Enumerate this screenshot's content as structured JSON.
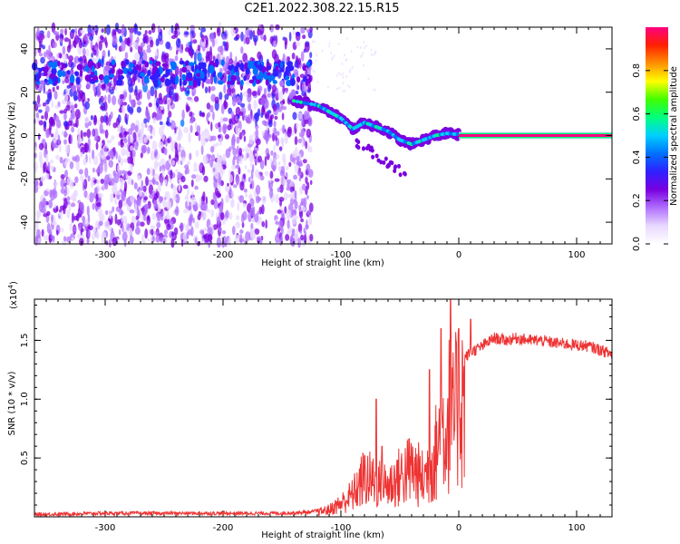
{
  "figure_title": "C2E1.2022.308.22.15.R15",
  "chart_data": [
    {
      "type": "heatmap",
      "xlabel": "Height of straight line (km)",
      "ylabel": "Frequency (Hz)",
      "xlim": [
        -360,
        130
      ],
      "ylim": [
        -50,
        50
      ],
      "x_ticks": [
        -300,
        -200,
        -100,
        0,
        100
      ],
      "y_ticks": [
        -40,
        -20,
        0,
        20,
        40
      ],
      "colorbar": {
        "label": "Normalized spectral amplitude",
        "range": [
          0,
          1
        ],
        "ticks": [
          "0.0",
          "0.2",
          "0.4",
          "0.6",
          "0.8"
        ],
        "colors": [
          "#ffffff",
          "#e8d8ff",
          "#b070ff",
          "#7a00e0",
          "#3020ff",
          "#0070ff",
          "#00d0ff",
          "#00ff80",
          "#40ff00",
          "#ffff00",
          "#ff9000",
          "#ff2000",
          "#ff0080"
        ]
      },
      "features": [
        {
          "name": "noise-band",
          "x_range": [
            -360,
            -125
          ],
          "frequency": 29,
          "amplitude": 0.45
        },
        {
          "name": "drifting-echo",
          "points": [
            [
              -140,
              16
            ],
            [
              -120,
              14
            ],
            [
              -110,
              11
            ],
            [
              -100,
              8
            ],
            [
              -90,
              3
            ],
            [
              -80,
              6
            ],
            [
              -70,
              4
            ],
            [
              -60,
              2
            ],
            [
              -50,
              -2
            ],
            [
              -40,
              -4
            ],
            [
              -30,
              -2
            ],
            [
              -20,
              0
            ],
            [
              -10,
              1
            ],
            [
              0,
              0.5
            ]
          ],
          "amplitude": 0.55
        },
        {
          "name": "carrier-line",
          "x_range": [
            0,
            130
          ],
          "frequency": 0,
          "amplitude": 1.0
        }
      ]
    },
    {
      "type": "line",
      "xlabel": "Height of straight line (km)",
      "ylabel": "SNR (10 * v/v)",
      "y_multiplier": "(x10",
      "y_multiplier_exp": "4",
      "y_multiplier_close": ")",
      "xlim": [
        -360,
        130
      ],
      "ylim": [
        0,
        1.85
      ],
      "x_ticks": [
        -300,
        -200,
        -100,
        0,
        100
      ],
      "y_ticks": [
        0.5,
        1.0,
        1.5
      ],
      "y_tick_labels": [
        "0.5",
        "1.0",
        "1.5"
      ],
      "series": [
        {
          "color": "#ee3333",
          "x": [
            -360,
            -300,
            -250,
            -200,
            -150,
            -125,
            -110,
            -100,
            -90,
            -80,
            -70,
            -60,
            -50,
            -40,
            -30,
            -20,
            -15,
            -10,
            -8,
            -5,
            0,
            5,
            10,
            20,
            30,
            40,
            50,
            60,
            70,
            80,
            90,
            100,
            110,
            120,
            130
          ],
          "y": [
            0.02,
            0.03,
            0.03,
            0.03,
            0.03,
            0.04,
            0.08,
            0.15,
            0.25,
            0.45,
            0.38,
            0.35,
            0.45,
            0.55,
            0.42,
            0.7,
            0.95,
            1.0,
            1.2,
            1.05,
            1.3,
            1.35,
            1.4,
            1.45,
            1.52,
            1.5,
            1.52,
            1.5,
            1.5,
            1.48,
            1.47,
            1.46,
            1.45,
            1.42,
            1.38
          ],
          "peaks": [
            [
              -70,
              1.0
            ],
            [
              -65,
              0.6
            ],
            [
              -25,
              1.25
            ],
            [
              -15,
              1.6
            ],
            [
              -7,
              1.85
            ],
            [
              10,
              1.68
            ],
            [
              0,
              1.6
            ]
          ]
        }
      ]
    }
  ]
}
